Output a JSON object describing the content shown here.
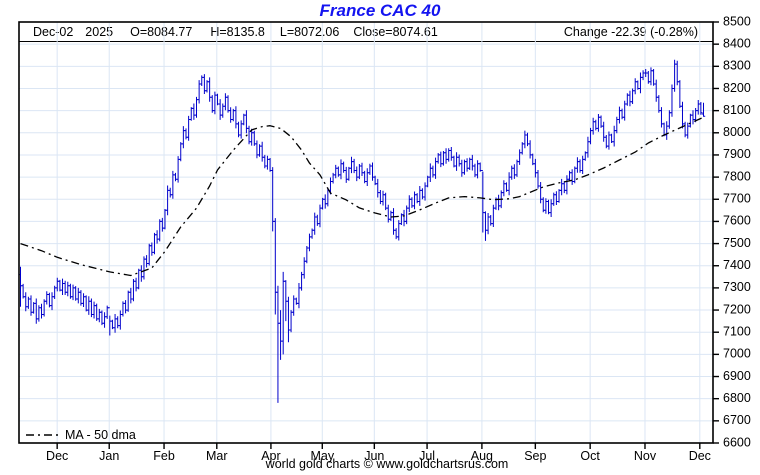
{
  "title": "France CAC 40",
  "header": {
    "date": "Dec-02",
    "year": "2025",
    "open": "O=8084.77",
    "high": "H=8135.8",
    "low": "L=8072.06",
    "close": "Close=8074.61",
    "change": "Change -22.39 (-0.28%)"
  },
  "legend": {
    "label": "MA - 50 dma"
  },
  "footer": {
    "credit": "world gold charts © www.goldchartsrus.com"
  },
  "colors": {
    "bar": "#0000cc",
    "ma": "#000000",
    "grid": "#dbe6f4",
    "border": "#000000",
    "title": "#1414f0",
    "text": "#000000",
    "background": "#ffffff"
  },
  "chart_data": {
    "type": "bar",
    "subtype": "ohlc-daily",
    "title": "France CAC 40",
    "ylabel": "",
    "xlabel": "",
    "ylim": [
      6600,
      8500
    ],
    "ytick_step": 100,
    "legend_position": "bottom-left",
    "grid": true,
    "months": [
      {
        "label": "Dec",
        "f": 0.055
      },
      {
        "label": "Jan",
        "f": 0.13
      },
      {
        "label": "Feb",
        "f": 0.209
      },
      {
        "label": "Mar",
        "f": 0.285
      },
      {
        "label": "Apr",
        "f": 0.363
      },
      {
        "label": "May",
        "f": 0.437
      },
      {
        "label": "Jun",
        "f": 0.512
      },
      {
        "label": "Jul",
        "f": 0.588
      },
      {
        "label": "Aug",
        "f": 0.667
      },
      {
        "label": "Sep",
        "f": 0.744
      },
      {
        "label": "Oct",
        "f": 0.823
      },
      {
        "label": "Nov",
        "f": 0.902
      },
      {
        "label": "Dec",
        "f": 0.981
      }
    ],
    "first_open": 7360,
    "closes": [
      7310,
      7260,
      7215,
      7250,
      7190,
      7230,
      7160,
      7210,
      7180,
      7240,
      7270,
      7220,
      7260,
      7300,
      7330,
      7290,
      7320,
      7280,
      7310,
      7260,
      7300,
      7250,
      7280,
      7230,
      7260,
      7200,
      7240,
      7180,
      7220,
      7160,
      7190,
      7140,
      7170,
      7210,
      7150,
      7120,
      7160,
      7130,
      7180,
      7230,
      7200,
      7280,
      7250,
      7330,
      7300,
      7380,
      7350,
      7430,
      7410,
      7490,
      7460,
      7540,
      7520,
      7600,
      7570,
      7650,
      7740,
      7720,
      7810,
      7790,
      7880,
      7950,
      8010,
      7980,
      8060,
      8110,
      8080,
      8150,
      8220,
      8250,
      8190,
      8230,
      8160,
      8100,
      8170,
      8130,
      8080,
      8120,
      8160,
      8100,
      8060,
      8100,
      8040,
      7990,
      8040,
      8080,
      8020,
      7960,
      8000,
      7950,
      7900,
      7940,
      7890,
      7850,
      7880,
      7830,
      7600,
      7280,
      7140,
      7060,
      7330,
      7240,
      7110,
      7190,
      7250,
      7230,
      7300,
      7360,
      7420,
      7480,
      7530,
      7560,
      7620,
      7590,
      7660,
      7700,
      7680,
      7740,
      7780,
      7810,
      7840,
      7810,
      7860,
      7830,
      7790,
      7840,
      7870,
      7830,
      7800,
      7850,
      7820,
      7780,
      7820,
      7850,
      7800,
      7770,
      7730,
      7690,
      7720,
      7660,
      7610,
      7640,
      7560,
      7530,
      7590,
      7630,
      7600,
      7660,
      7700,
      7670,
      7720,
      7690,
      7740,
      7710,
      7760,
      7800,
      7840,
      7810,
      7870,
      7900,
      7860,
      7910,
      7880,
      7920,
      7890,
      7850,
      7890,
      7860,
      7820,
      7870,
      7840,
      7880,
      7850,
      7810,
      7860,
      7830,
      7640,
      7560,
      7620,
      7590,
      7660,
      7700,
      7670,
      7730,
      7770,
      7740,
      7800,
      7840,
      7810,
      7870,
      7910,
      7950,
      7990,
      7950,
      7900,
      7860,
      7820,
      7760,
      7700,
      7650,
      7690,
      7640,
      7680,
      7720,
      7690,
      7740,
      7770,
      7740,
      7790,
      7820,
      7780,
      7840,
      7870,
      7830,
      7880,
      7910,
      7960,
      8010,
      8050,
      8020,
      8070,
      8030,
      7980,
      7940,
      7990,
      7960,
      8010,
      8060,
      8100,
      8070,
      8130,
      8170,
      8140,
      8190,
      8230,
      8200,
      8250,
      8270,
      8270,
      8230,
      8280,
      8220,
      8160,
      8100,
      8040,
      7990,
      8030,
      8090,
      8200,
      8310,
      8230,
      8120,
      8040,
      7990,
      8030,
      8080,
      8060,
      8100,
      8130,
      8090,
      8074.61
    ],
    "range_pattern": [
      15,
      8,
      20,
      10,
      16,
      6,
      22,
      12,
      18,
      9
    ],
    "hl_overrides": {
      "0": [
        7395,
        7215
      ],
      "34": [
        7175,
        7085
      ],
      "96": [
        7845,
        7555
      ],
      "97": [
        7615,
        7180
      ],
      "98": [
        7310,
        6781
      ],
      "99": [
        7200,
        6975
      ],
      "100": [
        7372,
        7000
      ],
      "101": [
        7335,
        7150
      ],
      "102": [
        7260,
        7055
      ],
      "176": [
        7825,
        7550
      ],
      "177": [
        7645,
        7512
      ],
      "249": [
        8330,
        8185
      ],
      "260": [
        8135.8,
        8072.06
      ]
    },
    "last_bar": {
      "open": 8084.77,
      "high": 8135.8,
      "low": 8072.06,
      "close": 8074.61
    },
    "ma_label": "MA - 50 dma",
    "ma_anchors": [
      [
        0,
        7500
      ],
      [
        8,
        7468
      ],
      [
        14,
        7438
      ],
      [
        23,
        7405
      ],
      [
        34,
        7372
      ],
      [
        42,
        7356
      ],
      [
        50,
        7390
      ],
      [
        55,
        7465
      ],
      [
        61,
        7575
      ],
      [
        67,
        7660
      ],
      [
        72,
        7760
      ],
      [
        75,
        7832
      ],
      [
        81,
        7922
      ],
      [
        88,
        8013
      ],
      [
        92,
        8028
      ],
      [
        95,
        8032
      ],
      [
        99,
        8020
      ],
      [
        103,
        7982
      ],
      [
        107,
        7922
      ],
      [
        110,
        7863
      ],
      [
        114,
        7810
      ],
      [
        118,
        7728
      ],
      [
        124,
        7697
      ],
      [
        129,
        7661
      ],
      [
        135,
        7638
      ],
      [
        141,
        7620
      ],
      [
        146,
        7625
      ],
      [
        152,
        7652
      ],
      [
        158,
        7683
      ],
      [
        163,
        7706
      ],
      [
        169,
        7712
      ],
      [
        175,
        7706
      ],
      [
        180,
        7698
      ],
      [
        186,
        7702
      ],
      [
        190,
        7712
      ],
      [
        199,
        7756
      ],
      [
        205,
        7774
      ],
      [
        211,
        7788
      ],
      [
        216,
        7810
      ],
      [
        222,
        7841
      ],
      [
        228,
        7877
      ],
      [
        234,
        7913
      ],
      [
        239,
        7954
      ],
      [
        245,
        7990
      ],
      [
        251,
        8022
      ],
      [
        256,
        8049
      ],
      [
        260,
        8070
      ]
    ]
  }
}
